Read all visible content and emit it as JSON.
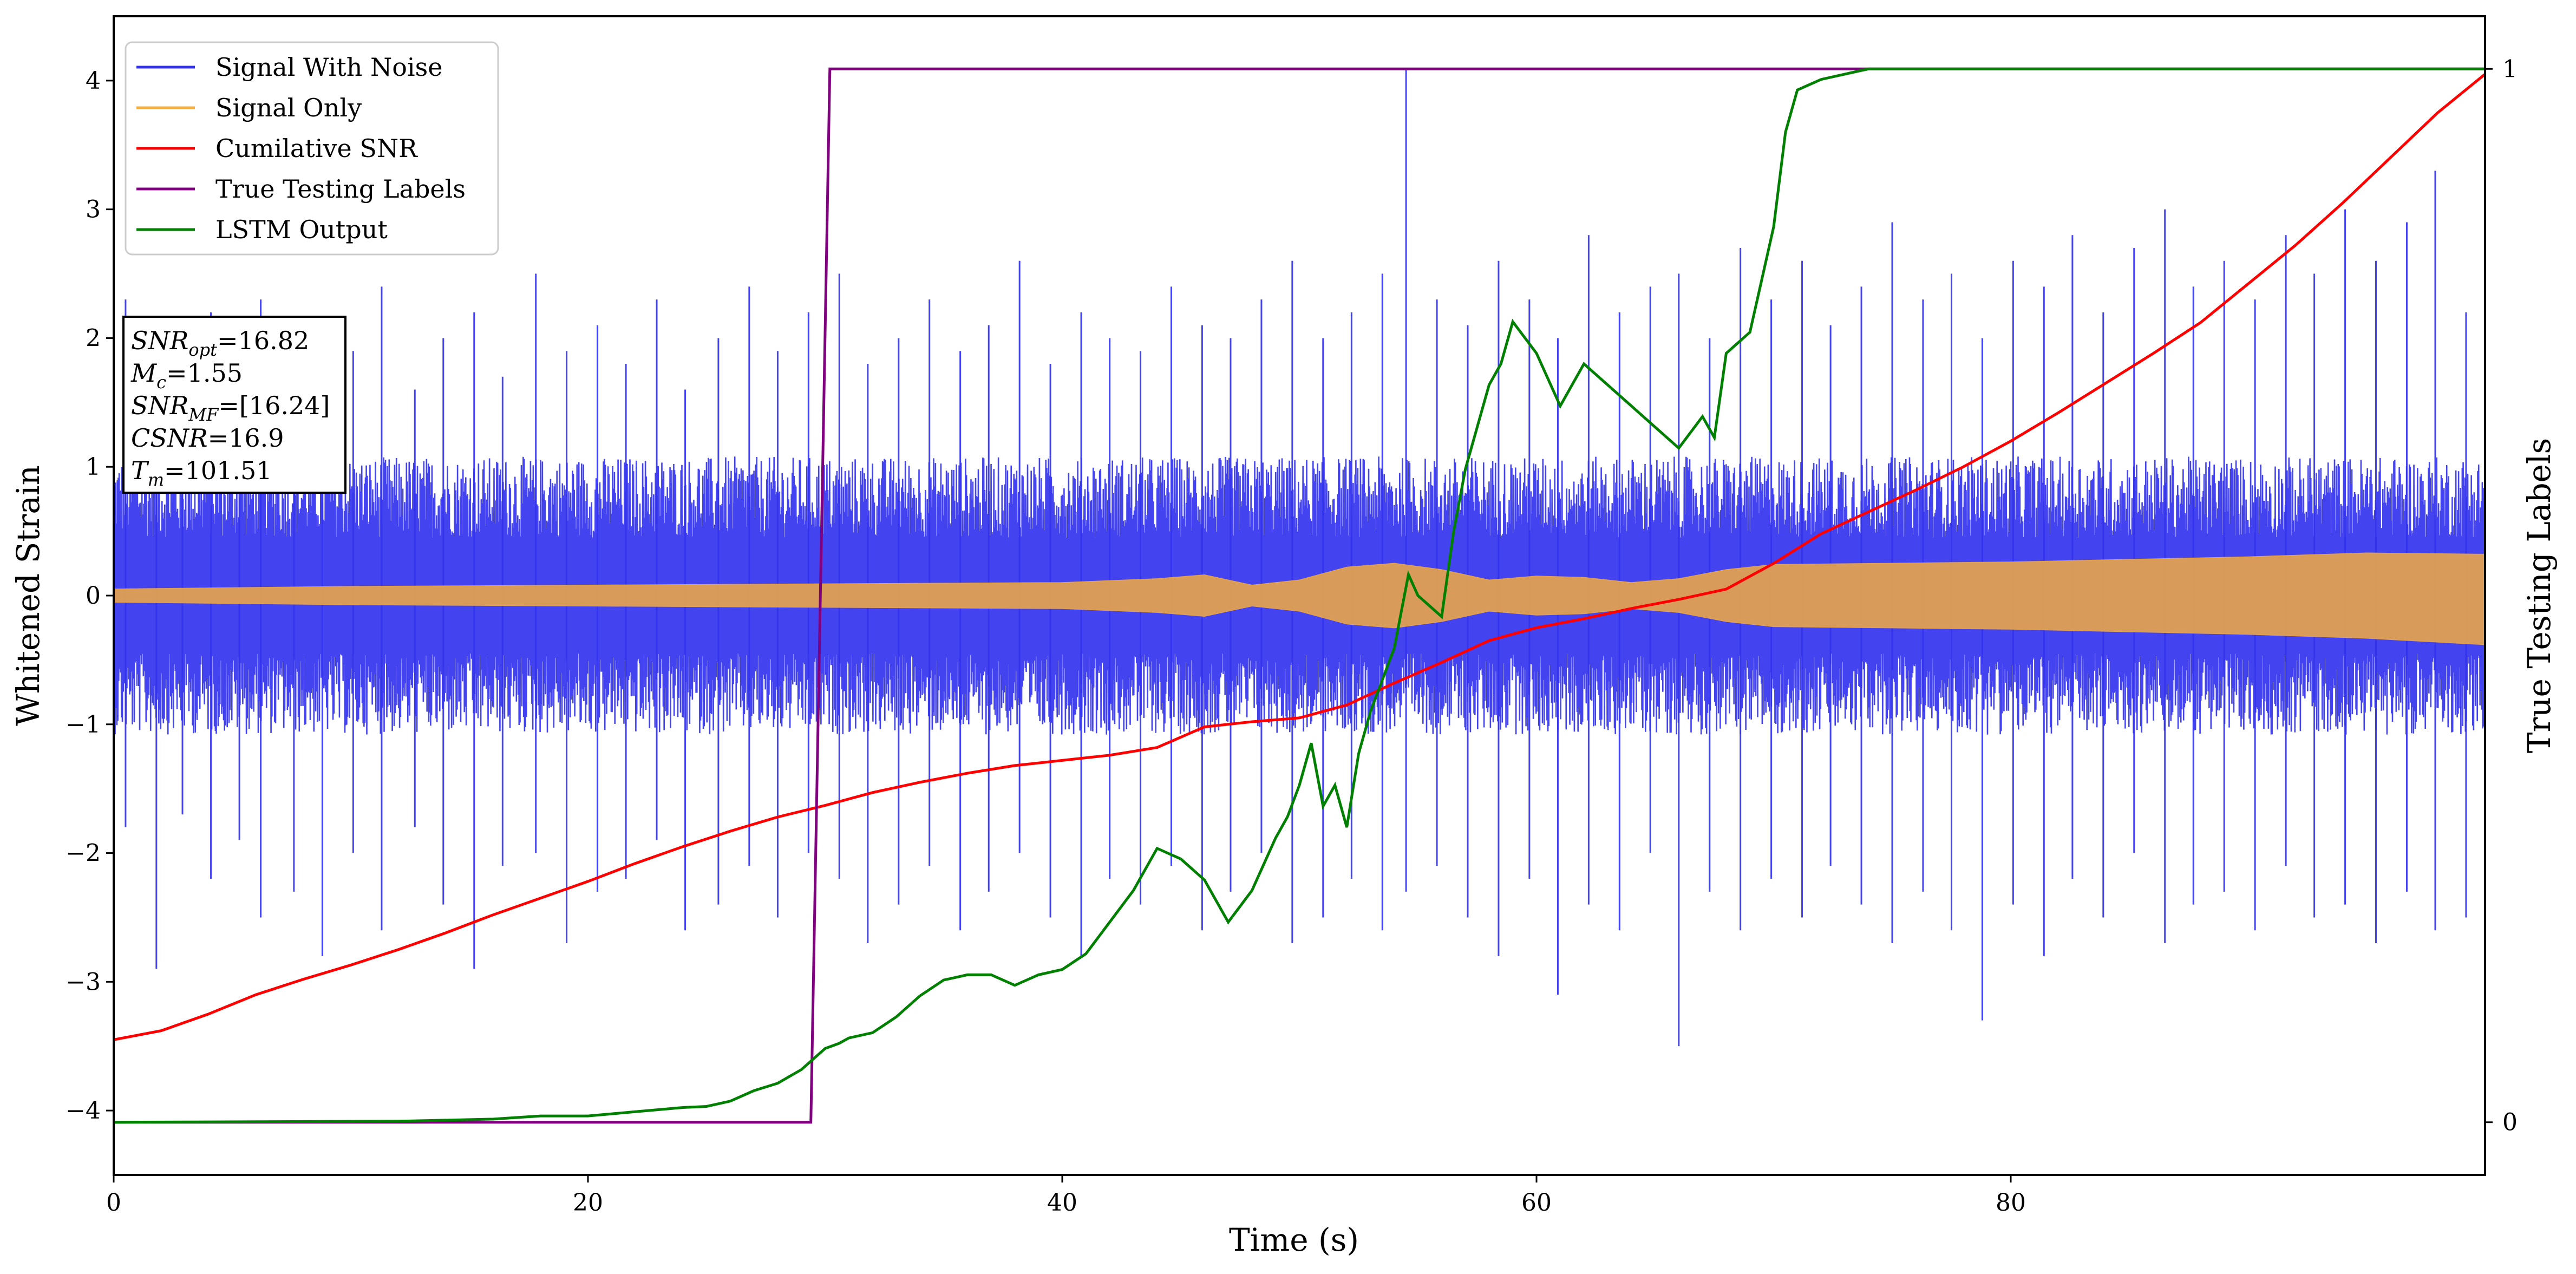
{
  "chart_data": {
    "type": "line",
    "title": "",
    "xlabel": "Time (s)",
    "ylabel": "Whitened Strain",
    "ylabel_right": "True Testing Labels",
    "xlim": [
      0,
      100
    ],
    "ylim": [
      -4.5,
      4.5
    ],
    "ylim_right": [
      -0.05,
      1.05
    ],
    "x_ticks": [
      0,
      20,
      40,
      60,
      80
    ],
    "y_ticks": [
      -4,
      -3,
      -2,
      -1,
      0,
      1,
      2,
      3,
      4
    ],
    "y_ticks_right": [
      0,
      1
    ],
    "grid": false,
    "legend_position": "top-left",
    "legend": [
      {
        "name": "Signal With Noise",
        "color": "#3333ee"
      },
      {
        "name": "Signal Only",
        "color": "#f5b041"
      },
      {
        "name": "Cumilative SNR",
        "color": "#ff0000"
      },
      {
        "name": "True Testing Labels",
        "color": "#800080"
      },
      {
        "name": "LSTM Output",
        "color": "#008000"
      }
    ],
    "info_box": {
      "lines": [
        {
          "sym": "SNR",
          "sub": "opt",
          "value": "=16.82"
        },
        {
          "sym": "M",
          "sub": "c",
          "value": "=1.55"
        },
        {
          "sym": "SNR",
          "sub": "MF",
          "value": "=[16.24]"
        },
        {
          "sym": "CSNR",
          "sub": "",
          "value": "=16.9"
        },
        {
          "sym": "T",
          "sub": "m",
          "value": "=101.51"
        }
      ]
    },
    "series": [
      {
        "name": "Signal Only",
        "axis": "left",
        "color": "#e0a050",
        "envelope": {
          "x": [
            0,
            10,
            20,
            30,
            40,
            44,
            46,
            48,
            50,
            52,
            54,
            56,
            58,
            60,
            62,
            64,
            66,
            68,
            70,
            75,
            80,
            85,
            90,
            95,
            100
          ],
          "upper": [
            0.05,
            0.07,
            0.08,
            0.09,
            0.1,
            0.13,
            0.16,
            0.08,
            0.12,
            0.22,
            0.25,
            0.2,
            0.12,
            0.15,
            0.14,
            0.1,
            0.13,
            0.2,
            0.24,
            0.25,
            0.26,
            0.28,
            0.3,
            0.33,
            0.32
          ],
          "lower": [
            -0.05,
            -0.07,
            -0.08,
            -0.09,
            -0.1,
            -0.13,
            -0.16,
            -0.08,
            -0.12,
            -0.22,
            -0.25,
            -0.2,
            -0.12,
            -0.15,
            -0.14,
            -0.1,
            -0.13,
            -0.2,
            -0.24,
            -0.25,
            -0.26,
            -0.28,
            -0.3,
            -0.33,
            -0.38
          ]
        }
      },
      {
        "name": "Signal With Noise",
        "axis": "left",
        "color": "#3333ee",
        "envelope": {
          "x": [
            0,
            100
          ],
          "upper": [
            0.6,
            0.6
          ],
          "lower": [
            -0.6,
            -0.6
          ]
        },
        "spikes": {
          "x": [
            0.5,
            1.8,
            2.9,
            4.1,
            5.3,
            6.2,
            7.6,
            8.8,
            10.1,
            11.3,
            12.7,
            13.9,
            15.2,
            16.4,
            17.8,
            19.1,
            20.4,
            21.6,
            22.9,
            24.1,
            25.5,
            26.8,
            28.0,
            29.3,
            30.6,
            31.8,
            33.1,
            34.4,
            35.7,
            36.9,
            38.2,
            39.5,
            40.8,
            42.0,
            43.3,
            44.6,
            45.9,
            47.1,
            48.4,
            49.7,
            51.0,
            52.2,
            53.5,
            54.5,
            55.8,
            57.1,
            58.4,
            59.7,
            60.9,
            62.2,
            63.5,
            64.8,
            66.0,
            67.3,
            68.6,
            69.9,
            71.2,
            72.4,
            73.7,
            75.0,
            76.3,
            77.5,
            78.8,
            80.1,
            81.4,
            82.6,
            83.9,
            85.2,
            86.5,
            87.7,
            89.0,
            90.3,
            91.6,
            92.8,
            94.1,
            95.4,
            96.7,
            97.9,
            99.2
          ],
          "upper": [
            2.3,
            2.0,
            1.7,
            2.2,
            1.8,
            2.3,
            1.5,
            2.1,
            1.9,
            2.4,
            1.6,
            2.0,
            2.2,
            1.7,
            2.5,
            1.9,
            2.1,
            1.8,
            2.3,
            1.6,
            2.0,
            2.4,
            1.9,
            2.2,
            2.5,
            1.8,
            2.0,
            2.3,
            1.9,
            2.1,
            2.6,
            1.8,
            2.2,
            2.0,
            1.9,
            2.4,
            2.1,
            2.0,
            2.3,
            2.6,
            2.0,
            2.2,
            2.5,
            4.1,
            2.3,
            2.1,
            2.6,
            2.3,
            2.0,
            2.8,
            2.2,
            2.4,
            2.5,
            2.0,
            2.7,
            2.3,
            2.6,
            2.1,
            2.4,
            2.9,
            2.3,
            2.5,
            2.0,
            2.6,
            2.4,
            2.8,
            2.2,
            2.7,
            3.0,
            2.4,
            2.6,
            2.3,
            2.8,
            2.5,
            3.0,
            2.6,
            2.9,
            3.3,
            2.2
          ],
          "lower": [
            -1.8,
            -2.9,
            -1.7,
            -2.2,
            -1.9,
            -2.5,
            -2.3,
            -2.8,
            -2.0,
            -2.6,
            -1.8,
            -2.4,
            -2.9,
            -2.1,
            -2.0,
            -2.7,
            -2.3,
            -2.2,
            -1.9,
            -2.6,
            -2.4,
            -2.1,
            -2.5,
            -2.0,
            -2.2,
            -2.7,
            -2.4,
            -2.1,
            -2.6,
            -2.3,
            -2.0,
            -2.5,
            -2.8,
            -2.2,
            -2.4,
            -2.1,
            -2.6,
            -2.3,
            -2.0,
            -2.7,
            -2.5,
            -2.2,
            -2.6,
            -2.3,
            -2.1,
            -2.5,
            -2.8,
            -2.2,
            -3.1,
            -2.4,
            -2.6,
            -2.0,
            -3.5,
            -2.3,
            -2.6,
            -2.2,
            -2.5,
            -2.1,
            -2.4,
            -2.7,
            -2.3,
            -2.6,
            -3.3,
            -2.4,
            -2.8,
            -2.2,
            -2.5,
            -2.0,
            -2.7,
            -2.4,
            -2.3,
            -2.6,
            -2.1,
            -2.5,
            -2.4,
            -2.7,
            -2.3,
            -2.6,
            -2.5
          ]
        }
      },
      {
        "name": "Cumilative SNR",
        "axis": "left",
        "color": "#ff0000",
        "x": [
          0,
          2,
          4,
          6,
          8,
          10,
          12,
          14,
          16,
          18,
          20,
          22,
          24,
          26,
          28,
          30,
          32,
          34,
          36,
          38,
          40,
          42,
          44,
          45,
          46,
          48,
          50,
          52,
          54,
          56,
          58,
          60,
          62,
          64,
          66,
          68,
          70,
          72,
          74,
          76,
          78,
          80,
          82,
          84,
          86,
          88,
          90,
          92,
          94,
          96,
          98,
          100
        ],
        "y": [
          -3.45,
          -3.38,
          -3.25,
          -3.1,
          -2.98,
          -2.87,
          -2.75,
          -2.62,
          -2.48,
          -2.35,
          -2.22,
          -2.08,
          -1.95,
          -1.83,
          -1.72,
          -1.63,
          -1.53,
          -1.45,
          -1.38,
          -1.32,
          -1.28,
          -1.24,
          -1.18,
          -1.1,
          -1.02,
          -0.98,
          -0.95,
          -0.85,
          -0.68,
          -0.52,
          -0.35,
          -0.25,
          -0.18,
          -0.1,
          -0.03,
          0.05,
          0.25,
          0.48,
          0.65,
          0.82,
          1.0,
          1.2,
          1.42,
          1.65,
          1.88,
          2.12,
          2.42,
          2.72,
          3.05,
          3.4,
          3.75,
          4.05
        ]
      },
      {
        "name": "True Testing Labels",
        "axis": "right",
        "color": "#800080",
        "x": [
          0,
          29.4,
          30.2,
          100
        ],
        "y": [
          0,
          0,
          1,
          1
        ]
      },
      {
        "name": "LSTM Output",
        "axis": "right",
        "color": "#008000",
        "x": [
          0,
          12,
          16,
          18,
          20,
          22,
          24,
          25,
          26,
          27,
          28,
          29,
          30,
          30.6,
          31,
          32,
          33,
          34,
          35,
          36,
          37,
          38,
          39,
          40,
          41,
          42,
          43,
          44,
          45,
          46,
          47,
          48,
          49,
          49.5,
          50,
          50.5,
          51,
          51.5,
          52,
          52.5,
          53,
          54,
          54.6,
          55,
          56,
          56.5,
          57,
          58,
          58.5,
          59,
          60,
          61,
          62,
          63,
          64,
          65,
          66,
          67,
          67.5,
          68,
          69,
          70,
          70.5,
          71,
          72,
          74,
          76,
          80,
          100
        ],
        "y": [
          0,
          0.001,
          0.003,
          0.006,
          0.006,
          0.01,
          0.014,
          0.015,
          0.02,
          0.03,
          0.037,
          0.05,
          0.07,
          0.075,
          0.08,
          0.085,
          0.1,
          0.12,
          0.135,
          0.14,
          0.14,
          0.13,
          0.14,
          0.145,
          0.16,
          0.19,
          0.22,
          0.26,
          0.25,
          0.23,
          0.19,
          0.22,
          0.27,
          0.29,
          0.32,
          0.36,
          0.3,
          0.32,
          0.28,
          0.35,
          0.39,
          0.45,
          0.52,
          0.5,
          0.48,
          0.56,
          0.62,
          0.7,
          0.72,
          0.76,
          0.73,
          0.68,
          0.72,
          0.7,
          0.68,
          0.66,
          0.64,
          0.67,
          0.65,
          0.73,
          0.75,
          0.85,
          0.94,
          0.98,
          0.99,
          1.0,
          1.0,
          1.0,
          1.0
        ]
      }
    ]
  }
}
